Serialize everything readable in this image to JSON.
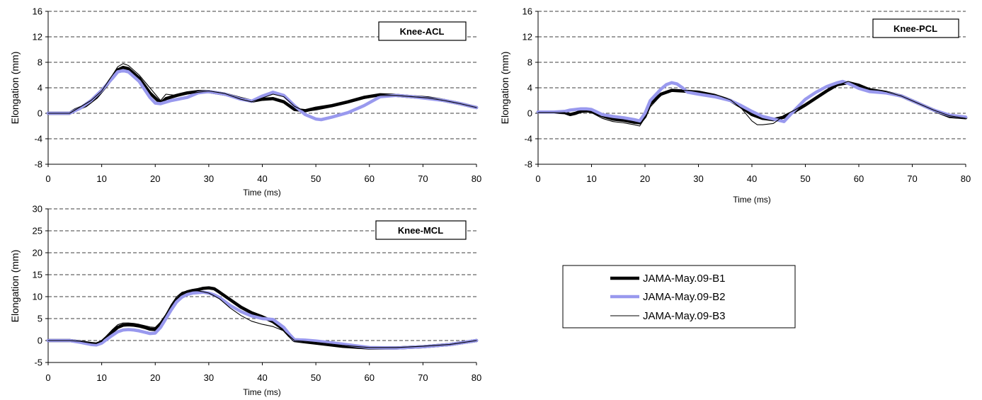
{
  "legend": {
    "entries": [
      "JAMA-May.09-B1",
      "JAMA-May.09-B2",
      "JAMA-May.09-B3"
    ]
  },
  "series_style": [
    {
      "color": "#000000",
      "weight": "thick"
    },
    {
      "color": "#9999ee",
      "weight": "thick"
    },
    {
      "color": "#000000",
      "weight": "thin"
    }
  ],
  "chart_data": [
    {
      "type": "line",
      "title": "Knee-ACL",
      "xlabel": "Time (ms)",
      "ylabel": "Elongation (mm)",
      "xlim": [
        0,
        80
      ],
      "ylim": [
        -8,
        16
      ],
      "xticks": [
        0,
        10,
        20,
        30,
        40,
        50,
        60,
        70,
        80
      ],
      "yticks": [
        -8,
        -4,
        0,
        4,
        8,
        12,
        16
      ],
      "grid": "horizontal dashed",
      "series": [
        {
          "name": "JAMA-May.09-B1",
          "x": [
            0,
            4,
            5,
            7,
            9,
            11,
            13,
            14,
            15,
            17,
            19,
            21,
            22,
            24,
            26,
            28,
            30,
            33,
            36,
            38,
            40,
            42,
            44,
            46,
            48,
            50,
            53,
            56,
            59,
            62,
            65,
            68,
            71,
            74,
            77,
            80
          ],
          "y": [
            0,
            0,
            0.5,
            1.2,
            2.5,
            4.5,
            6.8,
            7.2,
            7,
            5.5,
            3.2,
            1.6,
            2.3,
            2.8,
            3.2,
            3.4,
            3.4,
            3,
            2.3,
            1.9,
            2.2,
            2.3,
            1.8,
            0.6,
            0.4,
            0.8,
            1.2,
            1.8,
            2.5,
            2.9,
            2.8,
            2.6,
            2.4,
            2,
            1.5,
            0.9
          ]
        },
        {
          "name": "JAMA-May.09-B2",
          "x": [
            0,
            4,
            6,
            8,
            10,
            12,
            13,
            14,
            15,
            17,
            19,
            20,
            21,
            23,
            26,
            28,
            30,
            33,
            36,
            38,
            40,
            42,
            44,
            46,
            48,
            50,
            51,
            53,
            56,
            59,
            62,
            65,
            68,
            71,
            74,
            77,
            80
          ],
          "y": [
            0,
            0,
            0.8,
            2,
            3.6,
            5.5,
            6.5,
            6.7,
            6.5,
            5,
            2.5,
            1.6,
            1.5,
            2,
            2.5,
            3.2,
            3.4,
            3,
            2.2,
            1.9,
            2.7,
            3.3,
            2.8,
            1.2,
            -0.2,
            -0.9,
            -1,
            -0.6,
            0.1,
            1.2,
            2.6,
            2.8,
            2.6,
            2.3,
            2,
            1.5,
            0.9
          ]
        },
        {
          "name": "JAMA-May.09-B3",
          "x": [
            0,
            4,
            6,
            8,
            10,
            12,
            13,
            14,
            15,
            17,
            19,
            21,
            22,
            24,
            26,
            28,
            30,
            33,
            36,
            38,
            40,
            42,
            44,
            46,
            48,
            50,
            53,
            56,
            59,
            62,
            65,
            68,
            71,
            74,
            77,
            80
          ],
          "y": [
            0,
            0,
            1,
            2,
            3.5,
            6,
            7.3,
            7.8,
            7.5,
            6,
            4,
            2,
            3,
            2.8,
            3,
            3.3,
            3.5,
            3.1,
            2.2,
            1.8,
            2.4,
            3,
            2.6,
            1.1,
            0.3,
            0.5,
            1,
            1.6,
            2.3,
            2.8,
            2.8,
            2.6,
            2.4,
            2,
            1.5,
            0.9
          ]
        }
      ]
    },
    {
      "type": "line",
      "title": "Knee-PCL",
      "xlabel": "Time (ms)",
      "ylabel": "Elongation (mm)",
      "xlim": [
        0,
        80
      ],
      "ylim": [
        -8,
        16
      ],
      "xticks": [
        0,
        10,
        20,
        30,
        40,
        50,
        60,
        70,
        80
      ],
      "yticks": [
        -8,
        -4,
        0,
        4,
        8,
        12,
        16
      ],
      "grid": "horizontal dashed",
      "series": [
        {
          "name": "JAMA-May.09-B1",
          "x": [
            0,
            3,
            5,
            6,
            7,
            8,
            9,
            10,
            12,
            14,
            16,
            18,
            19,
            20,
            21,
            23,
            25,
            27,
            30,
            33,
            36,
            38,
            40,
            42,
            44,
            46,
            48,
            50,
            52,
            54,
            56,
            58,
            60,
            62,
            65,
            68,
            71,
            74,
            77,
            80
          ],
          "y": [
            0.2,
            0.2,
            0.1,
            -0.2,
            0,
            0.3,
            0.4,
            0.3,
            -0.4,
            -0.9,
            -1.1,
            -1.4,
            -1.5,
            -0.5,
            1.5,
            3,
            3.6,
            3.5,
            3.3,
            2.8,
            2,
            1,
            -0.2,
            -0.8,
            -1,
            -0.6,
            0.3,
            1.3,
            2.4,
            3.5,
            4.5,
            4.8,
            4.3,
            3.7,
            3.3,
            2.7,
            1.6,
            0.5,
            -0.5,
            -0.7
          ]
        },
        {
          "name": "JAMA-May.09-B2",
          "x": [
            0,
            3,
            5,
            6,
            7,
            8,
            9,
            10,
            12,
            14,
            16,
            18,
            19,
            20,
            21,
            23,
            24,
            25,
            26,
            27,
            28,
            30,
            33,
            36,
            38,
            40,
            42,
            44,
            46,
            48,
            50,
            52,
            54,
            56,
            57,
            58,
            60,
            62,
            65,
            68,
            71,
            74,
            77,
            80
          ],
          "y": [
            0.2,
            0.2,
            0.3,
            0.5,
            0.6,
            0.7,
            0.7,
            0.6,
            -0.2,
            -0.5,
            -0.7,
            -1,
            -1.2,
            0,
            2,
            3.8,
            4.5,
            4.8,
            4.6,
            4,
            3.3,
            3,
            2.6,
            2,
            1.2,
            0.3,
            -0.5,
            -0.9,
            -1.3,
            0.5,
            2.2,
            3.3,
            4.2,
            4.8,
            5,
            4.7,
            3.9,
            3.4,
            3.2,
            2.7,
            1.6,
            0.5,
            -0.3,
            -0.6
          ]
        },
        {
          "name": "JAMA-May.09-B3",
          "x": [
            0,
            3,
            5,
            6,
            7,
            8,
            9,
            10,
            12,
            14,
            16,
            18,
            19,
            20,
            21,
            23,
            25,
            27,
            30,
            33,
            36,
            38,
            40,
            41,
            42,
            44,
            45,
            46,
            48,
            50,
            52,
            54,
            56,
            58,
            60,
            62,
            65,
            68,
            71,
            74,
            77,
            80
          ],
          "y": [
            0.1,
            0.1,
            0.1,
            -0.1,
            0,
            0.1,
            0.2,
            0.1,
            -0.8,
            -1.3,
            -1.5,
            -1.8,
            -2,
            -0.7,
            1,
            2.8,
            3.5,
            3.6,
            3.5,
            3,
            2.1,
            0.8,
            -1.2,
            -1.8,
            -1.8,
            -1.6,
            -1,
            -0.3,
            0.5,
            1.5,
            2.5,
            3.5,
            4.4,
            5,
            4.6,
            3.9,
            3.4,
            2.7,
            1.6,
            0.5,
            -0.4,
            -0.8
          ]
        }
      ]
    },
    {
      "type": "line",
      "title": "Knee-MCL",
      "xlabel": "Time (ms)",
      "ylabel": "Elongation (mm)",
      "xlim": [
        0,
        80
      ],
      "ylim": [
        -5,
        30
      ],
      "xticks": [
        0,
        10,
        20,
        30,
        40,
        50,
        60,
        70,
        80
      ],
      "yticks": [
        -5,
        0,
        5,
        10,
        15,
        20,
        25,
        30
      ],
      "grid": "horizontal dashed",
      "series": [
        {
          "name": "JAMA-May.09-B1",
          "x": [
            0,
            4,
            6,
            8,
            9,
            10,
            11,
            12,
            13,
            14,
            15,
            16,
            17,
            18,
            19,
            20,
            21,
            22,
            23,
            24,
            25,
            26,
            27,
            28,
            29,
            30,
            31,
            32,
            34,
            36,
            38,
            40,
            42,
            44,
            45,
            46,
            48,
            50,
            55,
            60,
            65,
            70,
            75,
            80
          ],
          "y": [
            0,
            0,
            -0.3,
            -0.7,
            -0.8,
            -0.3,
            0.8,
            2,
            3,
            3.5,
            3.6,
            3.5,
            3.3,
            3,
            2.6,
            2.5,
            3.8,
            5.5,
            7.5,
            9.3,
            10.5,
            11.1,
            11.4,
            11.6,
            11.9,
            12,
            11.8,
            11,
            9.3,
            7.6,
            6.3,
            5.4,
            4.3,
            2.5,
            1.2,
            0,
            -0.3,
            -0.6,
            -1.3,
            -1.7,
            -1.7,
            -1.4,
            -0.9,
            0
          ]
        },
        {
          "name": "JAMA-May.09-B2",
          "x": [
            0,
            4,
            6,
            8,
            9,
            10,
            11,
            12,
            13,
            14,
            15,
            16,
            17,
            18,
            19,
            20,
            21,
            22,
            23,
            24,
            25,
            26,
            27,
            28,
            29,
            30,
            31,
            32,
            34,
            36,
            38,
            40,
            42,
            44,
            45,
            46,
            48,
            50,
            55,
            60,
            65,
            70,
            75,
            80
          ],
          "y": [
            0,
            0,
            -0.4,
            -0.9,
            -1,
            -0.6,
            0.3,
            1.2,
            2,
            2.4,
            2.5,
            2.4,
            2.2,
            1.9,
            1.6,
            1.7,
            3,
            5,
            7,
            8.8,
            9.9,
            10.5,
            10.8,
            10.9,
            11,
            10.8,
            10.4,
            9.8,
            8,
            6.6,
            5.6,
            5,
            4.8,
            3,
            1.5,
            0.2,
            0.1,
            -0.1,
            -0.8,
            -1.6,
            -1.7,
            -1.4,
            -0.9,
            0
          ]
        },
        {
          "name": "JAMA-May.09-B3",
          "x": [
            0,
            4,
            6,
            8,
            9,
            10,
            11,
            12,
            13,
            14,
            15,
            16,
            17,
            18,
            19,
            20,
            21,
            22,
            23,
            24,
            25,
            26,
            27,
            28,
            29,
            30,
            31,
            32,
            34,
            36,
            38,
            40,
            42,
            44,
            45,
            46,
            48,
            50,
            55,
            60,
            65,
            70,
            75,
            80
          ],
          "y": [
            0,
            0,
            -0.2,
            -0.6,
            -0.7,
            -0.2,
            1.2,
            2.5,
            3.6,
            4,
            4,
            3.9,
            3.7,
            3.4,
            3.1,
            3,
            4.2,
            6,
            8.2,
            10,
            11,
            11.3,
            11.4,
            11.3,
            11.1,
            10.8,
            10.2,
            9.5,
            7.4,
            5.7,
            4.4,
            3.7,
            3.2,
            2.2,
            1.1,
            0,
            -0.2,
            -0.4,
            -1.1,
            -1.6,
            -1.6,
            -1.3,
            -0.9,
            0
          ]
        }
      ]
    }
  ]
}
